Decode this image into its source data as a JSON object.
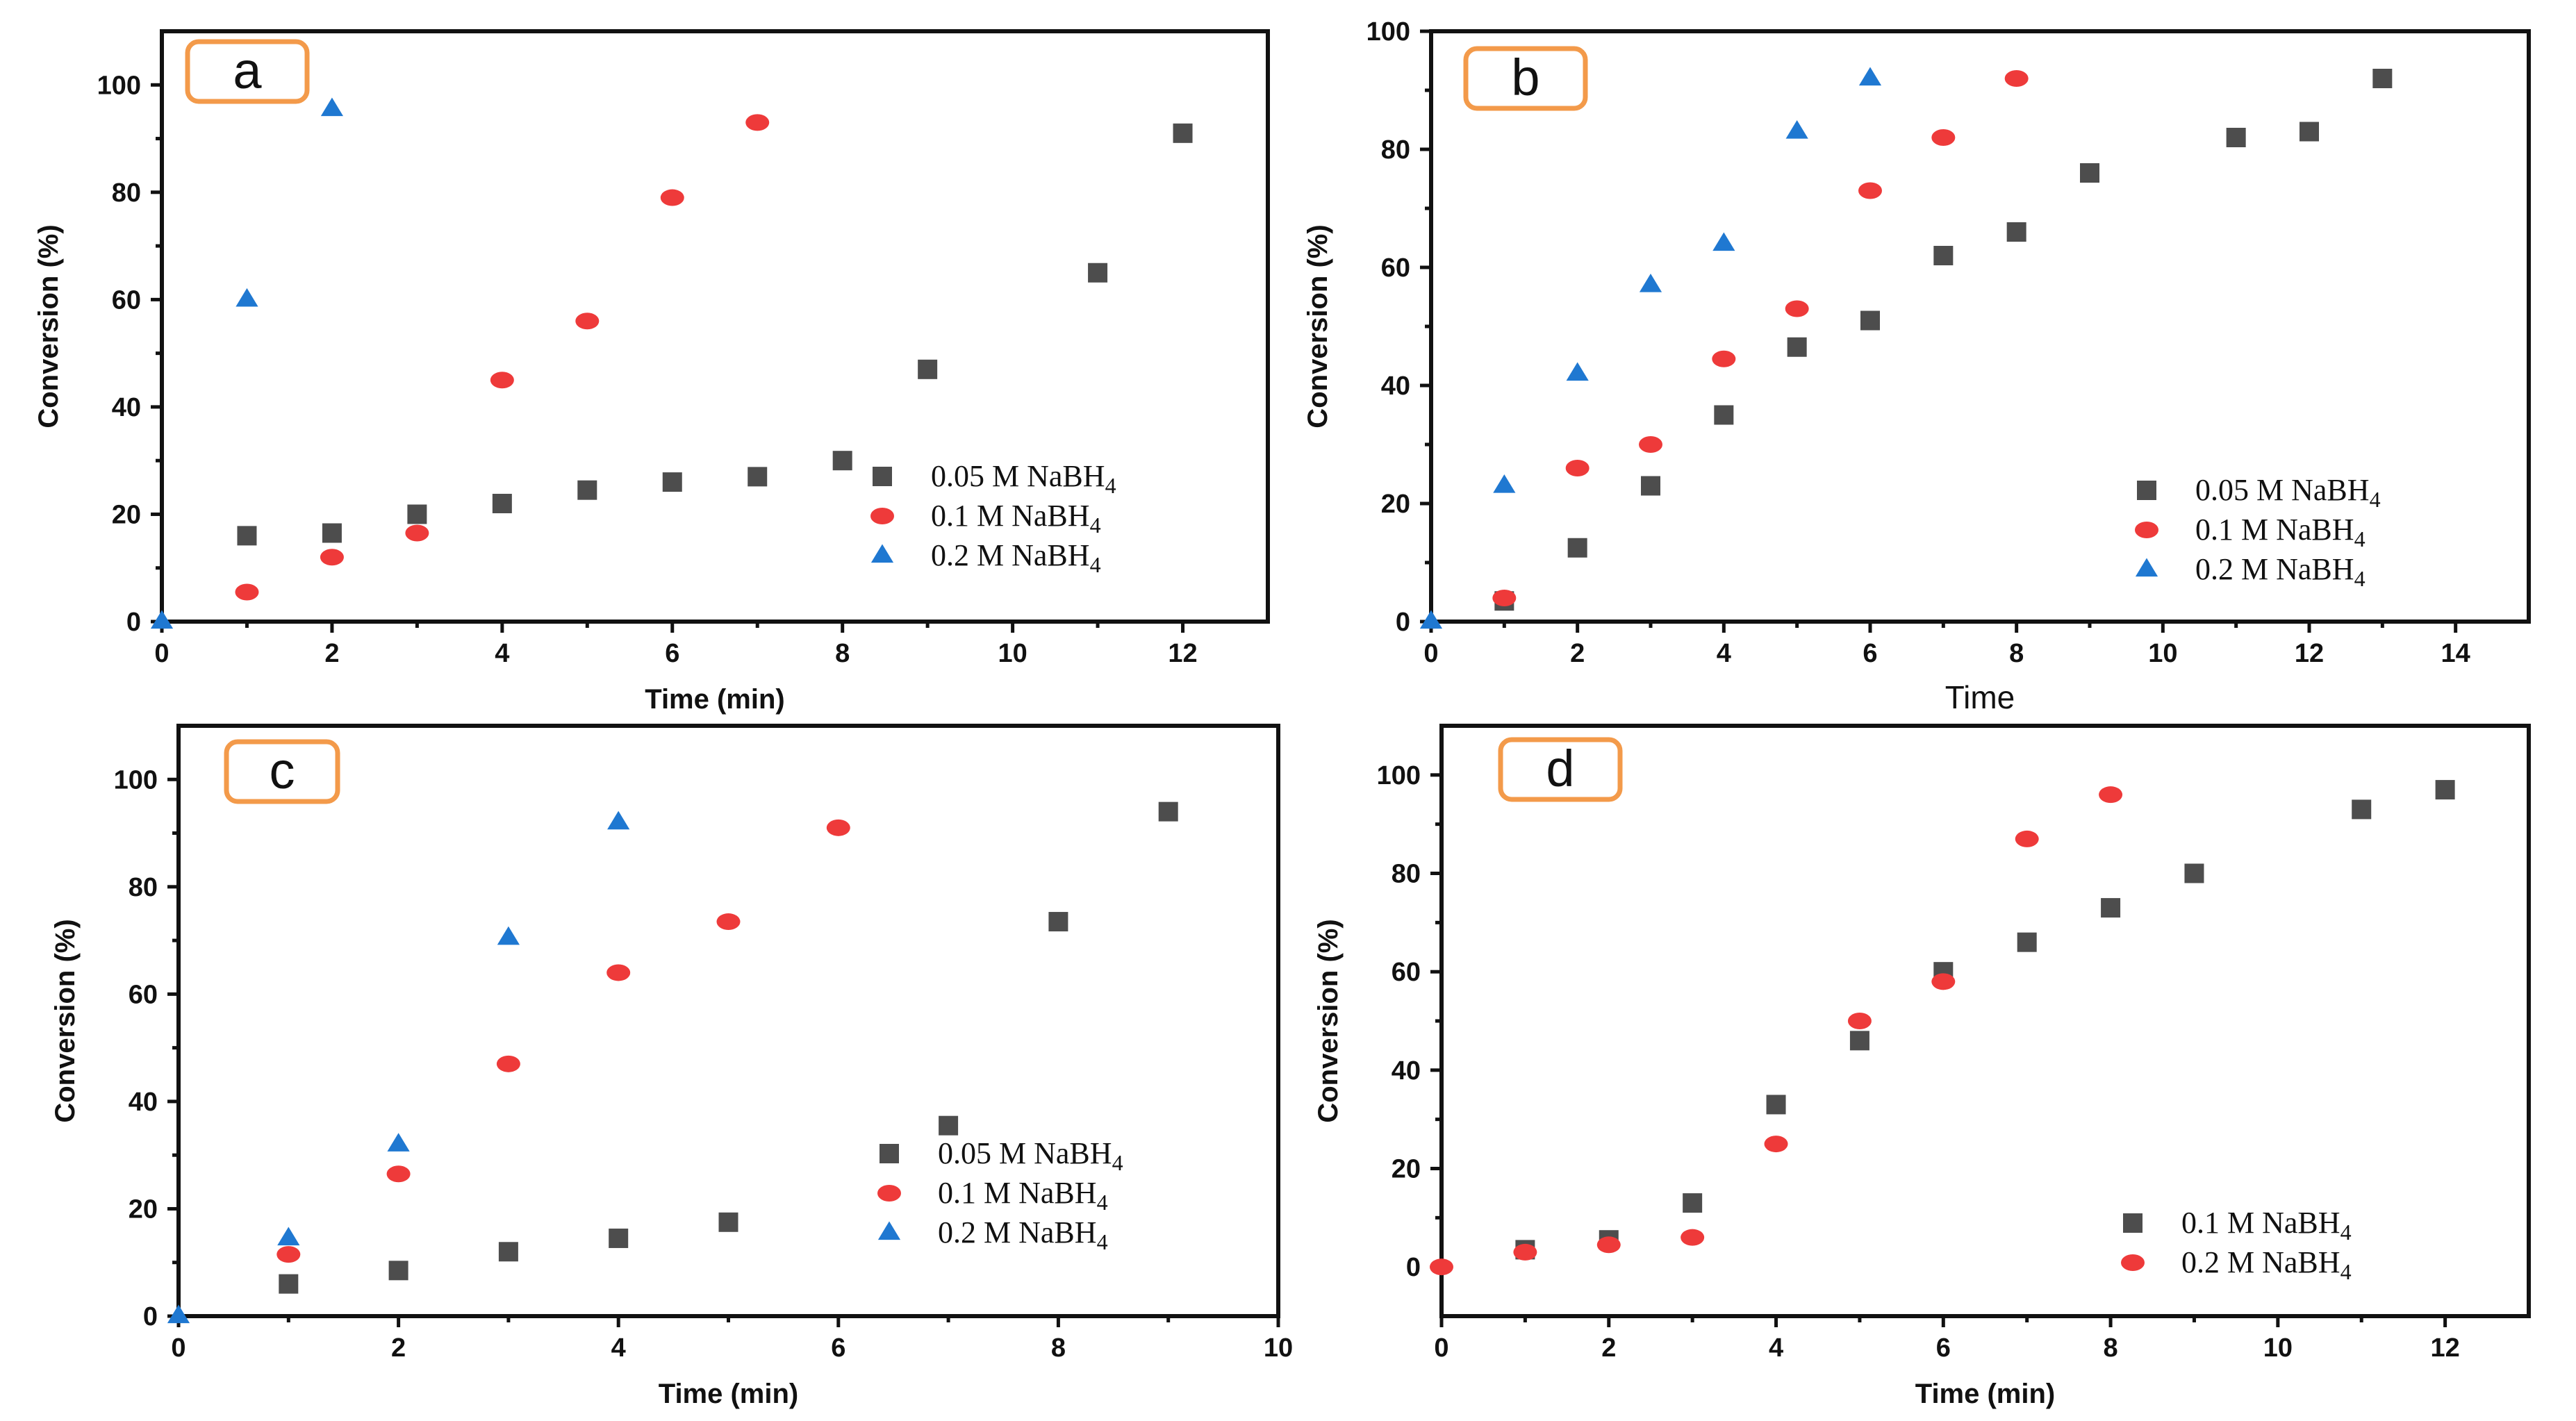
{
  "figure": {
    "title": ""
  },
  "chart_data": [
    {
      "type": "scatter",
      "panel_label": "a",
      "title": "",
      "xlabel": "Time (min)",
      "ylabel": "Conversion (%)",
      "xlim": [
        0,
        13
      ],
      "ylim": [
        0,
        110
      ],
      "xticks": [
        0,
        2,
        4,
        6,
        8,
        10,
        12
      ],
      "yticks": [
        0,
        20,
        40,
        60,
        80,
        100
      ],
      "legend_position": "bottom-right",
      "series": [
        {
          "name": "0.05 M NaBH4",
          "legend_label": "0.05 M NaBH",
          "legend_sub": "4",
          "marker": "square",
          "color": "#4d4d4d",
          "x": [
            1,
            2,
            3,
            4,
            5,
            6,
            7,
            8,
            9,
            11,
            12
          ],
          "y": [
            16,
            16.5,
            20,
            22,
            24.5,
            26,
            27,
            30,
            47,
            65,
            91
          ]
        },
        {
          "name": "0.1 M NaBH4",
          "legend_label": "0.1 M  NaBH",
          "legend_sub": "4",
          "marker": "circle",
          "color": "#ee3a3a",
          "x": [
            1,
            2,
            3,
            4,
            5,
            6,
            7
          ],
          "y": [
            5.5,
            12,
            16.5,
            45,
            56,
            79,
            93
          ]
        },
        {
          "name": "0.2 M NaBH4",
          "legend_label": "0.2 M  NaBH",
          "legend_sub": "4",
          "marker": "triangle",
          "color": "#1f78d1",
          "x": [
            0,
            1,
            2
          ],
          "y": [
            0,
            60,
            95.5
          ]
        }
      ]
    },
    {
      "type": "scatter",
      "panel_label": "b",
      "title": "",
      "xlabel": "Time",
      "ylabel": "Conversion (%)",
      "xlim": [
        0,
        15
      ],
      "ylim": [
        0,
        100
      ],
      "xticks": [
        0,
        2,
        4,
        6,
        8,
        10,
        12,
        14
      ],
      "yticks": [
        0,
        20,
        40,
        60,
        80,
        100
      ],
      "legend_position": "bottom-right",
      "series": [
        {
          "name": "0.05 M NaBH4",
          "legend_label": "0.05 M NaBH",
          "legend_sub": "4",
          "marker": "square",
          "color": "#4d4d4d",
          "x": [
            1,
            2,
            3,
            4,
            5,
            6,
            7,
            8,
            9,
            11,
            12,
            13
          ],
          "y": [
            3.5,
            12.5,
            23,
            35,
            46.5,
            51,
            62,
            66,
            76,
            82,
            83,
            92
          ]
        },
        {
          "name": "0.1 M NaBH4",
          "legend_label": "0.1 M  NaBH",
          "legend_sub": "4",
          "marker": "circle",
          "color": "#ee3a3a",
          "x": [
            1,
            2,
            3,
            4,
            5,
            6,
            7,
            8
          ],
          "y": [
            4,
            26,
            30,
            44.5,
            53,
            73,
            82,
            92
          ]
        },
        {
          "name": "0.2 M NaBH4",
          "legend_label": "0.2 M  NaBH",
          "legend_sub": "4",
          "marker": "triangle",
          "color": "#1f78d1",
          "x": [
            0,
            1,
            2,
            3,
            4,
            5,
            6
          ],
          "y": [
            0,
            23,
            42,
            57,
            64,
            83,
            92
          ]
        }
      ]
    },
    {
      "type": "scatter",
      "panel_label": "c",
      "title": "",
      "xlabel": "Time (min)",
      "ylabel": "Conversion (%)",
      "xlim": [
        0,
        10
      ],
      "ylim": [
        0,
        110
      ],
      "xticks": [
        0,
        2,
        4,
        6,
        8,
        10
      ],
      "yticks": [
        0,
        20,
        40,
        60,
        80,
        100
      ],
      "legend_position": "bottom-right",
      "series": [
        {
          "name": "0.05 M NaBH4",
          "legend_label": "0.05 M NaBH",
          "legend_sub": "4",
          "marker": "square",
          "color": "#4d4d4d",
          "x": [
            1,
            2,
            3,
            4,
            5,
            7,
            8,
            9
          ],
          "y": [
            6,
            8.5,
            12,
            14.5,
            17.5,
            35.5,
            73.5,
            94
          ]
        },
        {
          "name": "0.1 M NaBH4",
          "legend_label": "0.1 M  NaBH",
          "legend_sub": "4",
          "marker": "circle",
          "color": "#ee3a3a",
          "x": [
            1,
            2,
            3,
            4,
            5,
            6
          ],
          "y": [
            11.5,
            26.5,
            47,
            64,
            73.5,
            91
          ]
        },
        {
          "name": "0.2 M NaBH4",
          "legend_label": "0.2 M  NaBH",
          "legend_sub": "4",
          "marker": "triangle",
          "color": "#1f78d1",
          "x": [
            0,
            1,
            2,
            3,
            4
          ],
          "y": [
            0,
            14.5,
            32,
            70.5,
            92
          ]
        }
      ]
    },
    {
      "type": "scatter",
      "panel_label": "d",
      "title": "",
      "xlabel": "Time (min)",
      "ylabel": "Conversion (%)",
      "xlim": [
        0,
        13
      ],
      "ylim": [
        -10,
        110
      ],
      "xticks": [
        0,
        2,
        4,
        6,
        8,
        10,
        12
      ],
      "yticks": [
        0,
        20,
        40,
        60,
        80,
        100
      ],
      "legend_position": "bottom-right",
      "series": [
        {
          "name": "0.1 M NaBH4",
          "legend_label": "0.1 M  NaBH",
          "legend_sub": "4",
          "marker": "square",
          "color": "#4d4d4d",
          "x": [
            1,
            2,
            3,
            4,
            5,
            6,
            7,
            8,
            9,
            11,
            12
          ],
          "y": [
            3.5,
            5.5,
            13,
            33,
            46,
            60,
            66,
            73,
            80,
            93,
            97
          ]
        },
        {
          "name": "0.2 M NaBH4",
          "legend_label": "0.2 M  NaBH",
          "legend_sub": "4",
          "marker": "circle",
          "color": "#ee3a3a",
          "x": [
            0,
            1,
            2,
            3,
            4,
            5,
            6,
            7,
            8
          ],
          "y": [
            0,
            3,
            4.5,
            6,
            25,
            50,
            58,
            87,
            96
          ]
        }
      ]
    }
  ]
}
